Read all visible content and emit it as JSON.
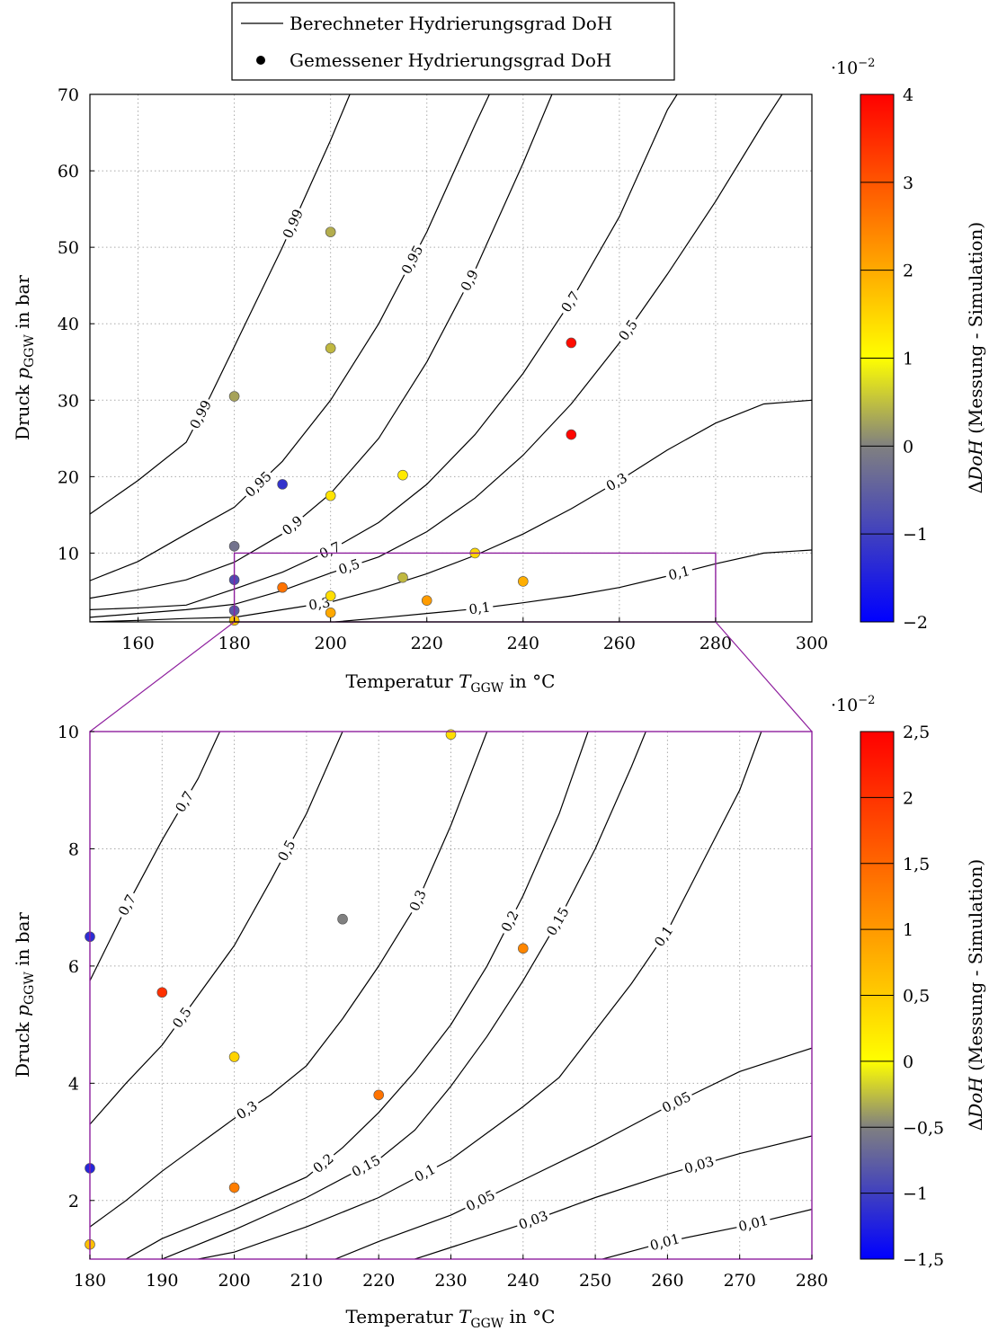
{
  "legend": {
    "line_label": "Berechneter Hydrierungsgrad DoH",
    "marker_label": "Gemessener Hydrierungsgrad DoH"
  },
  "chart_data": [
    {
      "type": "scatter",
      "overlay": "contour",
      "xlabel": "Temperatur T_GGW in °C",
      "ylabel": "Druck p_GGW in bar",
      "xlim": [
        150,
        300
      ],
      "ylim": [
        1,
        70
      ],
      "xticks": [
        160,
        180,
        200,
        220,
        240,
        260,
        280,
        300
      ],
      "yticks": [
        10,
        20,
        30,
        40,
        50,
        60,
        70
      ],
      "grid": true,
      "zoom_box": {
        "x": [
          180,
          280
        ],
        "y": [
          1,
          10
        ]
      },
      "colorbar": {
        "label": "ΔDoH (Messung - Simulation)",
        "exponent": "·10−2",
        "range": [
          -2,
          4
        ],
        "ticks": [
          "−2",
          "−1",
          "0",
          "1",
          "2",
          "3",
          "4"
        ]
      },
      "contours": [
        {
          "level": "0,99",
          "points": [
            [
              150,
              15.1
            ],
            [
              160,
              19.5
            ],
            [
              170,
              24.5
            ],
            [
              175,
              30.5
            ],
            [
              180,
              37
            ],
            [
              190,
              50
            ],
            [
              200,
              64
            ],
            [
              204,
              70
            ]
          ]
        },
        {
          "level": "0,95",
          "points": [
            [
              150,
              6.4
            ],
            [
              160,
              8.9
            ],
            [
              170,
              12.5
            ],
            [
              180,
              16
            ],
            [
              190,
              22
            ],
            [
              200,
              30
            ],
            [
              210,
              40
            ],
            [
              220,
              52
            ],
            [
              230,
              66
            ],
            [
              233,
              70
            ]
          ]
        },
        {
          "level": "0,9",
          "points": [
            [
              150,
              4.1
            ],
            [
              160,
              5.2
            ],
            [
              170,
              6.5
            ],
            [
              180,
              8.8
            ],
            [
              190,
              12.5
            ],
            [
              200,
              17.8
            ],
            [
              210,
              25
            ],
            [
              220,
              35
            ],
            [
              230,
              47
            ],
            [
              240,
              61
            ],
            [
              246,
              70
            ]
          ]
        },
        {
          "level": "0,7",
          "points": [
            [
              150,
              2.6
            ],
            [
              160,
              2.85
            ],
            [
              170,
              3.2
            ],
            [
              180,
              5.3
            ],
            [
              190,
              7.5
            ],
            [
              200,
              10.4
            ],
            [
              210,
              14
            ],
            [
              220,
              19
            ],
            [
              230,
              25.5
            ],
            [
              240,
              33.5
            ],
            [
              250,
              43
            ],
            [
              260,
              54
            ],
            [
              270,
              68
            ],
            [
              272,
              70
            ]
          ]
        },
        {
          "level": "0,5",
          "points": [
            [
              150,
              1.6
            ],
            [
              160,
              2.1
            ],
            [
              170,
              2.6
            ],
            [
              180,
              3.3
            ],
            [
              190,
              5.1
            ],
            [
              200,
              7.4
            ],
            [
              210,
              9.5
            ],
            [
              220,
              12.8
            ],
            [
              230,
              17.2
            ],
            [
              240,
              22.8
            ],
            [
              250,
              29.5
            ],
            [
              260,
              37.5
            ],
            [
              270,
              46.5
            ],
            [
              280,
              56
            ],
            [
              290,
              66.3
            ],
            [
              300,
              76
            ]
          ]
        },
        {
          "level": "0,3",
          "points": [
            [
              150,
              1.0
            ],
            [
              160,
              1.2
            ],
            [
              170,
              1.45
            ],
            [
              180,
              1.6
            ],
            [
              190,
              2.6
            ],
            [
              200,
              3.6
            ],
            [
              210,
              5.3
            ],
            [
              220,
              7.3
            ],
            [
              230,
              9.7
            ],
            [
              240,
              12.5
            ],
            [
              250,
              15.8
            ],
            [
              260,
              19.5
            ],
            [
              270,
              23.5
            ],
            [
              280,
              27
            ],
            [
              290,
              29.5
            ],
            [
              300,
              30
            ]
          ]
        },
        {
          "level": "0,1",
          "points": [
            [
              201,
              1
            ],
            [
              210,
              1.5
            ],
            [
              220,
              2.1
            ],
            [
              230,
              2.7
            ],
            [
              240,
              3.5
            ],
            [
              250,
              4.4
            ],
            [
              260,
              5.5
            ],
            [
              270,
              7
            ],
            [
              280,
              8.6
            ],
            [
              290,
              10
            ],
            [
              300,
              10.4
            ]
          ]
        }
      ],
      "points": [
        {
          "x": 180,
          "y": 30.5,
          "delta": -0.7
        },
        {
          "x": 180,
          "y": 10.9,
          "delta": -1.1
        },
        {
          "x": 180,
          "y": 6.5,
          "delta": -1.4
        },
        {
          "x": 180,
          "y": 2.5,
          "delta": -1.3
        },
        {
          "x": 180,
          "y": 1.2,
          "delta": 0.7
        },
        {
          "x": 190,
          "y": 19.0,
          "delta": -1.6
        },
        {
          "x": 190,
          "y": 5.5,
          "delta": 2.1
        },
        {
          "x": 200,
          "y": 52.0,
          "delta": -0.6
        },
        {
          "x": 200,
          "y": 36.8,
          "delta": -0.5
        },
        {
          "x": 200,
          "y": 17.5,
          "delta": 0.2
        },
        {
          "x": 200,
          "y": 4.4,
          "delta": 0.3
        },
        {
          "x": 200,
          "y": 2.2,
          "delta": 1.2
        },
        {
          "x": 215,
          "y": 20.2,
          "delta": 0.1
        },
        {
          "x": 215,
          "y": 6.8,
          "delta": -0.5
        },
        {
          "x": 220,
          "y": 3.8,
          "delta": 1.4
        },
        {
          "x": 230,
          "y": 10.0,
          "delta": 0.4
        },
        {
          "x": 240,
          "y": 6.3,
          "delta": 1.1
        },
        {
          "x": 250,
          "y": 37.5,
          "delta": 3.8
        },
        {
          "x": 250,
          "y": 25.5,
          "delta": 3.9
        }
      ]
    },
    {
      "type": "scatter",
      "overlay": "contour",
      "xlabel": "Temperatur T_GGW in °C",
      "ylabel": "Druck p_GGW in bar",
      "xlim": [
        180,
        280
      ],
      "ylim": [
        1,
        10
      ],
      "xticks": [
        180,
        190,
        200,
        210,
        220,
        230,
        240,
        250,
        260,
        270,
        280
      ],
      "yticks": [
        2,
        4,
        6,
        8,
        10
      ],
      "grid": true,
      "colorbar": {
        "label": "ΔDoH (Messung - Simulation)",
        "exponent": "·10−2",
        "range": [
          -1.5,
          2.5
        ],
        "ticks": [
          "−1,5",
          "−1",
          "−0,5",
          "0",
          "0,5",
          "1",
          "1,5",
          "2",
          "2,5"
        ]
      },
      "contours": [
        {
          "level": "0,7",
          "points": [
            [
              180,
              5.75
            ],
            [
              185,
              7.0
            ],
            [
              190,
              8.15
            ],
            [
              195,
              9.2
            ],
            [
              198,
              10
            ]
          ]
        },
        {
          "level": "0,5",
          "points": [
            [
              180,
              3.3
            ],
            [
              185,
              4.0
            ],
            [
              190,
              4.65
            ],
            [
              195,
              5.5
            ],
            [
              200,
              6.35
            ],
            [
              205,
              7.45
            ],
            [
              210,
              8.6
            ],
            [
              215,
              10
            ]
          ]
        },
        {
          "level": "0,3",
          "points": [
            [
              180,
              1.55
            ],
            [
              185,
              2.0
            ],
            [
              190,
              2.5
            ],
            [
              195,
              2.95
            ],
            [
              200,
              3.4
            ],
            [
              205,
              3.8
            ],
            [
              210,
              4.3
            ],
            [
              215,
              5.1
            ],
            [
              220,
              6.0
            ],
            [
              225,
              7.0
            ],
            [
              230,
              8.4
            ],
            [
              235,
              10
            ]
          ]
        },
        {
          "level": "0,2",
          "points": [
            [
              185,
              1.0
            ],
            [
              190,
              1.35
            ],
            [
              200,
              1.85
            ],
            [
              210,
              2.4
            ],
            [
              215,
              2.9
            ],
            [
              220,
              3.5
            ],
            [
              225,
              4.2
            ],
            [
              230,
              5.0
            ],
            [
              235,
              6.0
            ],
            [
              240,
              7.2
            ],
            [
              245,
              8.6
            ],
            [
              249,
              10
            ]
          ]
        },
        {
          "level": "0,15",
          "points": [
            [
              190,
              1.0
            ],
            [
              200,
              1.5
            ],
            [
              210,
              2.05
            ],
            [
              220,
              2.7
            ],
            [
              225,
              3.2
            ],
            [
              230,
              3.95
            ],
            [
              235,
              4.8
            ],
            [
              240,
              5.75
            ],
            [
              245,
              6.8
            ],
            [
              250,
              8.0
            ],
            [
              255,
              9.4
            ],
            [
              257,
              10
            ]
          ]
        },
        {
          "level": "0,1",
          "points": [
            [
              195,
              1.0
            ],
            [
              200,
              1.12
            ],
            [
              210,
              1.55
            ],
            [
              220,
              2.05
            ],
            [
              230,
              2.7
            ],
            [
              240,
              3.6
            ],
            [
              245,
              4.1
            ],
            [
              250,
              4.9
            ],
            [
              255,
              5.7
            ],
            [
              260,
              6.6
            ],
            [
              265,
              7.8
            ],
            [
              270,
              9.0
            ],
            [
              273,
              10
            ]
          ]
        },
        {
          "level": "0,05",
          "points": [
            [
              214,
              1.0
            ],
            [
              220,
              1.3
            ],
            [
              230,
              1.75
            ],
            [
              240,
              2.35
            ],
            [
              250,
              2.95
            ],
            [
              260,
              3.6
            ],
            [
              270,
              4.2
            ],
            [
              280,
              4.6
            ]
          ]
        },
        {
          "level": "0,03",
          "points": [
            [
              225,
              1.0
            ],
            [
              230,
              1.2
            ],
            [
              240,
              1.6
            ],
            [
              250,
              2.05
            ],
            [
              260,
              2.45
            ],
            [
              270,
              2.8
            ],
            [
              280,
              3.1
            ]
          ]
        },
        {
          "level": "0,01",
          "points": [
            [
              251,
              1.0
            ],
            [
              260,
              1.3
            ],
            [
              270,
              1.55
            ],
            [
              280,
              1.85
            ]
          ]
        }
      ],
      "points": [
        {
          "x": 180,
          "y": 6.5,
          "delta": -1.15
        },
        {
          "x": 180,
          "y": 2.55,
          "delta": -1.2
        },
        {
          "x": 180,
          "y": 1.25,
          "delta": 0.5
        },
        {
          "x": 190,
          "y": 5.55,
          "delta": 2.0
        },
        {
          "x": 200,
          "y": 4.45,
          "delta": 0.3
        },
        {
          "x": 200,
          "y": 2.22,
          "delta": 1.2
        },
        {
          "x": 215,
          "y": 6.8,
          "delta": -0.5
        },
        {
          "x": 220,
          "y": 3.8,
          "delta": 1.3
        },
        {
          "x": 230,
          "y": 9.95,
          "delta": 0.2
        },
        {
          "x": 240,
          "y": 6.3,
          "delta": 1.1
        }
      ]
    }
  ]
}
